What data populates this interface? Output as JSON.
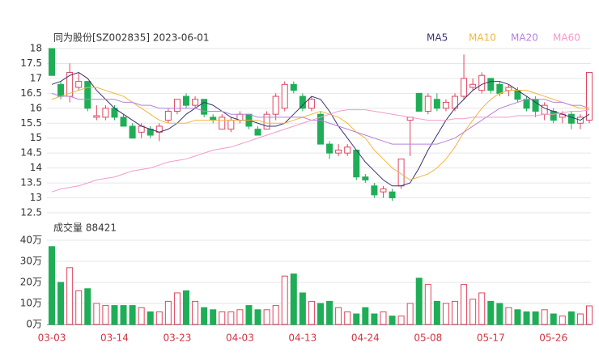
{
  "chart_data": {
    "type": "candlestick",
    "title": "同为股份[SZ002835] 2023-06-01",
    "volume_title": "成交量 88421",
    "categories": [
      "03-03",
      null,
      null,
      null,
      null,
      null,
      null,
      "03-14",
      null,
      null,
      null,
      null,
      null,
      null,
      "03-23",
      null,
      null,
      null,
      null,
      null,
      null,
      "04-03",
      null,
      null,
      null,
      null,
      null,
      null,
      "04-13",
      null,
      null,
      null,
      null,
      null,
      null,
      "04-24",
      null,
      null,
      null,
      null,
      null,
      null,
      "05-08",
      null,
      null,
      null,
      null,
      null,
      null,
      "05-17",
      null,
      null,
      null,
      null,
      null,
      null,
      "05-26",
      null,
      null,
      null,
      null
    ],
    "open": [
      18,
      16.8,
      16.4,
      16.7,
      16.9,
      15.7,
      15.7,
      16.0,
      15.7,
      15.4,
      15.2,
      15.3,
      15.2,
      15.6,
      15.9,
      16.4,
      16.1,
      16.3,
      15.7,
      15.3,
      15.3,
      15.6,
      15.8,
      15.3,
      15.3,
      15.8,
      16.0,
      16.8,
      16.4,
      16.0,
      15.8,
      14.8,
      14.5,
      14.5,
      14.6,
      13.7,
      13.4,
      13.2,
      13.2,
      13.4,
      15.6,
      16.5,
      15.9,
      16.3,
      16.0,
      16.0,
      16.4,
      16.7,
      16.6,
      17.0,
      16.8,
      16.6,
      16.6,
      16.3,
      16.3,
      15.8,
      15.9,
      15.7,
      15.8,
      15.5,
      15.6
    ],
    "high": [
      18,
      16.9,
      17.5,
      17.2,
      16.9,
      16.1,
      16.1,
      16.1,
      15.8,
      15.5,
      15.5,
      15.4,
      15.5,
      16.0,
      16.3,
      16.5,
      16.4,
      16.3,
      15.8,
      15.8,
      15.7,
      15.9,
      15.8,
      15.4,
      15.9,
      16.5,
      16.9,
      16.9,
      16.5,
      16.4,
      15.9,
      14.9,
      14.8,
      14.8,
      14.6,
      13.8,
      13.5,
      13.4,
      13.3,
      14.3,
      15.7,
      16.5,
      16.5,
      16.5,
      16.3,
      16.5,
      17.8,
      17.0,
      17.2,
      17.0,
      16.9,
      16.8,
      16.7,
      16.4,
      16.4,
      16.2,
      16.0,
      15.9,
      15.9,
      15.8,
      17.2
    ],
    "low": [
      17.1,
      16.3,
      16.2,
      16.6,
      15.9,
      15.6,
      15.6,
      15.6,
      15.4,
      15.0,
      15.0,
      15.0,
      14.9,
      15.5,
      15.8,
      16.0,
      16.0,
      15.7,
      15.5,
      15.3,
      15.2,
      15.5,
      15.3,
      15.1,
      15.3,
      15.6,
      15.9,
      16.5,
      15.9,
      15.9,
      14.8,
      14.3,
      14.4,
      14.4,
      13.6,
      13.5,
      13.0,
      13.0,
      12.9,
      13.3,
      14.4,
      15.9,
      15.8,
      15.9,
      15.9,
      15.9,
      16.3,
      16.6,
      16.5,
      16.5,
      16.4,
      16.4,
      16.2,
      15.9,
      15.7,
      15.6,
      15.5,
      15.5,
      15.3,
      15.3,
      15.5
    ],
    "close": [
      17.1,
      16.4,
      17.2,
      16.9,
      16.0,
      15.75,
      16.0,
      15.7,
      15.4,
      15.0,
      15.4,
      15.1,
      15.4,
      15.9,
      16.3,
      16.1,
      16.3,
      15.8,
      15.6,
      15.7,
      15.6,
      15.8,
      15.4,
      15.1,
      15.8,
      16.4,
      16.8,
      16.6,
      16.0,
      16.3,
      14.8,
      14.5,
      14.6,
      14.7,
      13.7,
      13.6,
      13.1,
      13.3,
      13.0,
      14.3,
      15.7,
      15.9,
      16.4,
      16.0,
      16.2,
      16.4,
      17.0,
      16.8,
      17.1,
      16.6,
      16.5,
      16.7,
      16.3,
      16.0,
      15.9,
      16.1,
      15.6,
      15.8,
      15.5,
      15.7,
      17.2
    ],
    "volume": [
      37,
      20,
      27,
      16,
      17,
      10,
      9,
      9,
      9,
      9,
      8,
      6,
      6,
      11,
      15,
      16,
      11,
      8,
      7,
      6,
      6,
      7,
      9,
      7,
      7,
      9,
      23,
      24,
      15,
      11,
      10,
      11,
      8,
      6,
      5,
      8,
      5,
      6,
      4,
      4,
      10,
      22,
      19,
      11,
      10,
      11,
      19,
      12,
      15,
      11,
      10,
      8,
      7,
      6,
      6,
      7,
      5,
      4,
      6,
      5,
      8.8421
    ],
    "up_color": "#e0465f",
    "down_color": "#1fae57",
    "series": [
      {
        "name": "MA5",
        "color": "#3b3370",
        "values": [
          16.8,
          16.9,
          17.1,
          17.2,
          17.0,
          16.6,
          16.3,
          16.0,
          15.8,
          15.6,
          15.4,
          15.3,
          15.2,
          15.3,
          15.5,
          15.8,
          16.0,
          16.2,
          16.1,
          15.9,
          15.7,
          15.6,
          15.6,
          15.5,
          15.4,
          15.4,
          15.5,
          15.8,
          16.1,
          16.4,
          16.3,
          15.9,
          15.4,
          15.0,
          14.6,
          14.2,
          13.9,
          13.6,
          13.4,
          13.4,
          13.5,
          14.0,
          14.6,
          15.1,
          15.6,
          16.0,
          16.3,
          16.6,
          16.8,
          16.9,
          16.9,
          16.8,
          16.6,
          16.4,
          16.2,
          16.0,
          15.9,
          15.8,
          15.7,
          15.6,
          15.8
        ]
      },
      {
        "name": "MA10",
        "color": "#f2b640",
        "values": [
          16.3,
          16.4,
          16.5,
          16.6,
          16.7,
          16.7,
          16.6,
          16.5,
          16.4,
          16.2,
          16.0,
          15.8,
          15.6,
          15.5,
          15.5,
          15.5,
          15.6,
          15.6,
          15.6,
          15.6,
          15.6,
          15.6,
          15.6,
          15.6,
          15.5,
          15.5,
          15.5,
          15.6,
          15.7,
          15.8,
          15.9,
          15.8,
          15.7,
          15.5,
          15.2,
          15.0,
          14.6,
          14.3,
          14.0,
          13.8,
          13.6,
          13.7,
          13.8,
          14.0,
          14.3,
          14.7,
          15.2,
          15.6,
          16.0,
          16.3,
          16.5,
          16.6,
          16.6,
          16.6,
          16.5,
          16.4,
          16.3,
          16.2,
          16.1,
          16.0,
          16.0
        ]
      },
      {
        "name": "MA20",
        "color": "#b583dc",
        "values": [
          16.5,
          16.4,
          16.4,
          16.3,
          16.3,
          16.3,
          16.3,
          16.3,
          16.2,
          16.2,
          16.1,
          16.1,
          16.0,
          16.0,
          16.0,
          16.0,
          16.0,
          15.9,
          15.9,
          15.9,
          15.8,
          15.8,
          15.8,
          15.7,
          15.7,
          15.7,
          15.7,
          15.7,
          15.7,
          15.6,
          15.6,
          15.5,
          15.4,
          15.3,
          15.2,
          15.1,
          15.0,
          14.9,
          14.8,
          14.8,
          14.8,
          14.8,
          14.8,
          14.8,
          14.9,
          15.0,
          15.2,
          15.4,
          15.6,
          15.8,
          16.0,
          16.1,
          16.2,
          16.3,
          16.3,
          16.3,
          16.2,
          16.2,
          16.1,
          16.1,
          16.0
        ]
      },
      {
        "name": "MA60",
        "color": "#f29acb",
        "values": [
          13.2,
          13.3,
          13.35,
          13.4,
          13.5,
          13.6,
          13.65,
          13.7,
          13.8,
          13.9,
          13.95,
          14.0,
          14.1,
          14.2,
          14.25,
          14.3,
          14.4,
          14.5,
          14.6,
          14.65,
          14.7,
          14.8,
          14.9,
          15.0,
          15.1,
          15.2,
          15.3,
          15.4,
          15.5,
          15.6,
          15.7,
          15.8,
          15.9,
          15.95,
          15.95,
          15.95,
          15.9,
          15.85,
          15.8,
          15.75,
          15.7,
          15.65,
          15.6,
          15.6,
          15.6,
          15.65,
          15.65,
          15.7,
          15.7,
          15.7,
          15.7,
          15.7,
          15.75,
          15.75,
          15.75,
          15.8,
          15.8,
          15.85,
          15.9,
          15.9,
          15.95
        ]
      }
    ],
    "ylim": [
      12.5,
      18
    ],
    "yticks": [
      18,
      17.5,
      17,
      16.5,
      16,
      15.5,
      15,
      14.5,
      14,
      13.5,
      13,
      12.5
    ],
    "vlim": [
      0,
      40
    ],
    "vticks": [
      {
        "value": 40,
        "label": "40万"
      },
      {
        "value": 30,
        "label": "30万"
      },
      {
        "value": 20,
        "label": "20万"
      },
      {
        "value": 10,
        "label": "10万"
      },
      {
        "value": 0,
        "label": "0万"
      }
    ],
    "grid": true
  }
}
